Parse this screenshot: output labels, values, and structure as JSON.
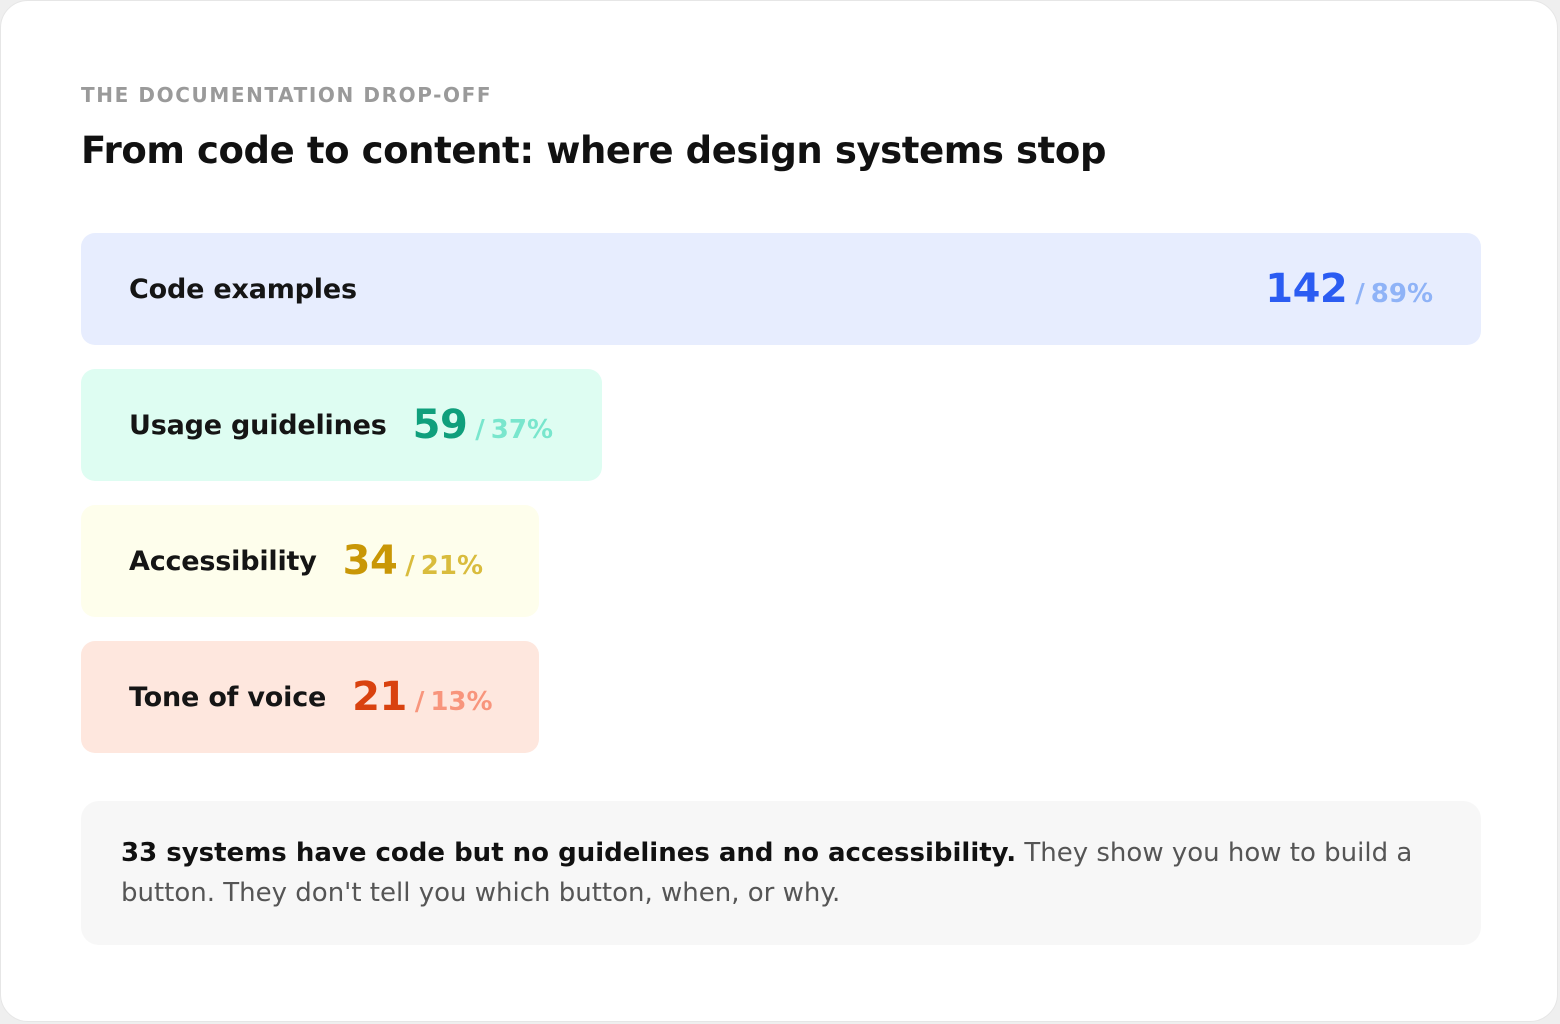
{
  "eyebrow": "THE DOCUMENTATION DROP-OFF",
  "title": "From code to content: where design systems stop",
  "chart_data": {
    "type": "bar",
    "orientation": "horizontal",
    "categories": [
      "Code examples",
      "Usage guidelines",
      "Accessibility",
      "Tone of voice"
    ],
    "values": [
      142,
      59,
      34,
      21
    ],
    "percent_labels": [
      "89%",
      "37%",
      "21%",
      "13%"
    ],
    "percents": [
      89,
      37,
      21,
      13
    ],
    "separator": "/",
    "colors": [
      {
        "bg": "#e7edfe",
        "count": "#2b5cf2",
        "pct": "#8fb3f7"
      },
      {
        "bg": "#defdf2",
        "count": "#0f9f7c",
        "pct": "#79e6cd"
      },
      {
        "bg": "#fefeec",
        "count": "#c99706",
        "pct": "#d9bc3d"
      },
      {
        "bg": "#fee7de",
        "count": "#d9420f",
        "pct": "#f8957c"
      }
    ],
    "xlim": [
      0,
      160
    ]
  },
  "note": {
    "strong": "33 systems have code but no guidelines and no accessibility.",
    "text": " They show you how to build a button. They don't tell you which button, when, or why."
  }
}
